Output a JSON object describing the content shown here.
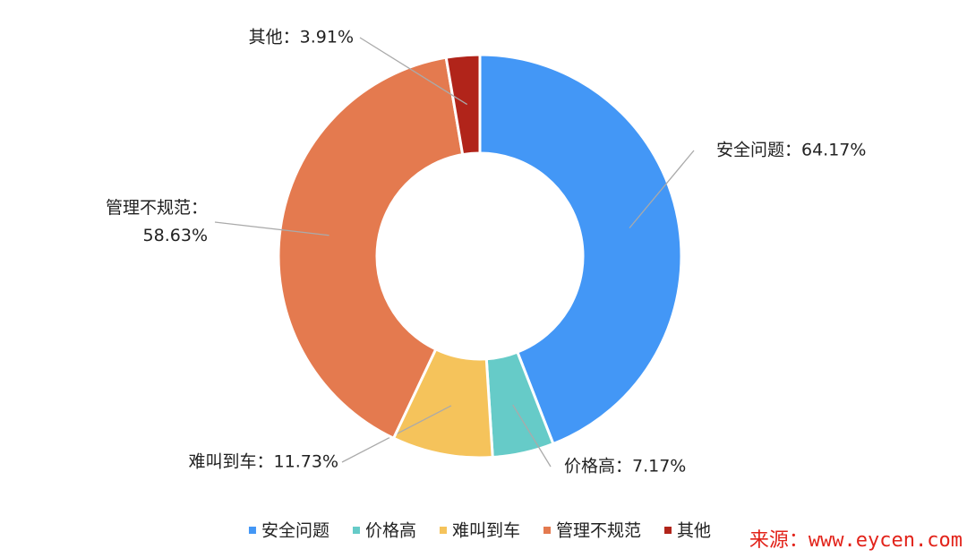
{
  "chart_data": {
    "type": "donut",
    "categories": [
      "安全问题",
      "价格高",
      "难叫到车",
      "管理不规范",
      "其他"
    ],
    "values": [
      64.17,
      7.17,
      11.73,
      58.63,
      3.91
    ],
    "value_labels": [
      "安全问题：64.17%",
      "价格高：7.17%",
      "难叫到车：11.73%",
      "管理不规范：\n58.63%",
      "其他：3.91%"
    ],
    "colors": [
      "#4397f6",
      "#66cbc8",
      "#f5c35b",
      "#e47a4f",
      "#b1241a"
    ],
    "legend": "bottom"
  },
  "watermark": "来源：www.eycen.com"
}
